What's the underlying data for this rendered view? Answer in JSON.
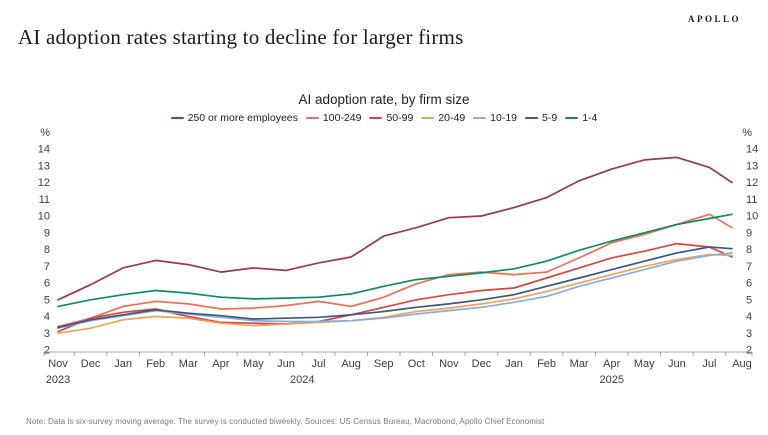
{
  "header": {
    "title": "AI adoption rates starting to decline for larger firms",
    "logo": "APOLLO"
  },
  "footnote": "Note: Data is six-survey moving average. The survey is conducted biweekly. Sources: US Census Bureau, Macrobond, Apollo Chief Economist",
  "chart_data": {
    "type": "line",
    "title": "AI adoption rate, by firm size",
    "unit_label": "%",
    "grid": false,
    "legend_position": "top",
    "ylim": [
      2,
      14
    ],
    "yticks": [
      14,
      13,
      12,
      11,
      10,
      9,
      8,
      7,
      6,
      5,
      4,
      3,
      2
    ],
    "x_labels": [
      "Nov",
      "Dec",
      "Jan",
      "Feb",
      "Mar",
      "Apr",
      "May",
      "Jun",
      "Jul",
      "Aug",
      "Sep",
      "Oct",
      "Nov",
      "Dec",
      "Jan",
      "Feb",
      "Mar",
      "Apr",
      "May",
      "Jun",
      "Jul",
      "Aug"
    ],
    "year_labels": [
      {
        "text": "2023",
        "index": 0
      },
      {
        "text": "2024",
        "index": 7.5
      },
      {
        "text": "2025",
        "index": 17
      }
    ],
    "axis_color": "#a6a6a6",
    "label_color": "#3c3c3c",
    "series": [
      {
        "name": "250 or more employees",
        "color": "#99394E",
        "values": [
          5.0,
          5.9,
          6.9,
          7.35,
          7.1,
          6.65,
          6.9,
          6.75,
          7.2,
          7.55,
          8.8,
          9.3,
          9.9,
          10.0,
          10.5,
          11.1,
          12.1,
          12.8,
          13.35,
          13.5,
          12.9,
          12.0
        ]
      },
      {
        "name": "100-249",
        "color": "#EC7156",
        "values": [
          3.4,
          3.9,
          4.6,
          4.9,
          4.75,
          4.45,
          4.5,
          4.65,
          4.9,
          4.6,
          5.15,
          5.95,
          6.5,
          6.65,
          6.5,
          6.65,
          7.5,
          8.4,
          8.9,
          9.5,
          10.1,
          9.3
        ]
      },
      {
        "name": "50-99",
        "color": "#D7473F",
        "values": [
          3.1,
          3.9,
          4.25,
          4.45,
          4.0,
          3.65,
          3.6,
          3.55,
          3.7,
          4.1,
          4.55,
          5.0,
          5.3,
          5.55,
          5.7,
          6.3,
          6.9,
          7.5,
          7.9,
          8.35,
          8.15,
          7.55
        ]
      },
      {
        "name": "20-49",
        "color": "#F2A159",
        "values": [
          3.0,
          3.3,
          3.8,
          4.0,
          3.9,
          3.6,
          3.45,
          3.55,
          3.65,
          3.75,
          3.95,
          4.3,
          4.5,
          4.75,
          5.05,
          5.5,
          6.0,
          6.5,
          7.0,
          7.4,
          7.7,
          7.65
        ]
      },
      {
        "name": "10-19",
        "color": "#88AEDE",
        "values": [
          3.3,
          3.75,
          4.05,
          4.35,
          4.15,
          3.95,
          3.75,
          3.7,
          3.7,
          3.75,
          3.9,
          4.15,
          4.35,
          4.55,
          4.85,
          5.2,
          5.8,
          6.3,
          6.8,
          7.3,
          7.65,
          7.8
        ]
      },
      {
        "name": "5-9",
        "color": "#39587E",
        "values": [
          3.35,
          3.8,
          4.1,
          4.4,
          4.2,
          4.05,
          3.85,
          3.9,
          3.95,
          4.1,
          4.3,
          4.55,
          4.75,
          5.0,
          5.3,
          5.8,
          6.3,
          6.8,
          7.3,
          7.8,
          8.15,
          8.05
        ]
      },
      {
        "name": "1-4",
        "color": "#0E8A68",
        "values": [
          4.6,
          5.0,
          5.3,
          5.55,
          5.4,
          5.15,
          5.05,
          5.1,
          5.15,
          5.35,
          5.8,
          6.2,
          6.4,
          6.6,
          6.85,
          7.3,
          7.95,
          8.5,
          9.0,
          9.5,
          9.85,
          10.1
        ]
      }
    ]
  }
}
